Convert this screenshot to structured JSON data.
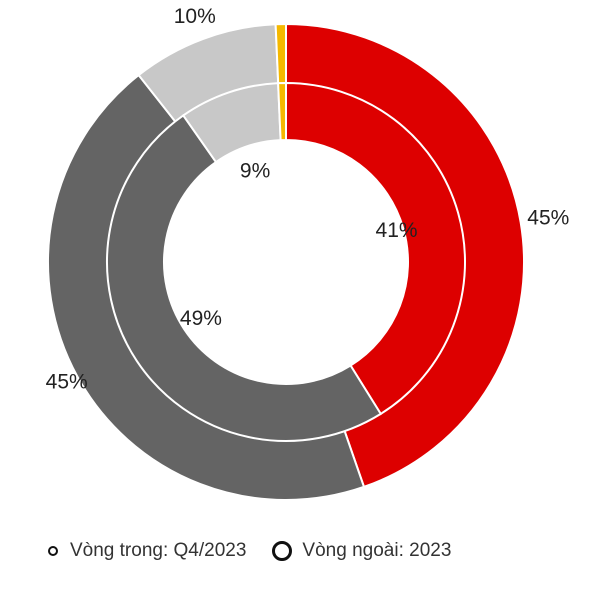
{
  "chart_data": {
    "type": "donut",
    "title": "",
    "series": [
      {
        "name": "Vòng ngoài: 2023",
        "ring": "outer",
        "values": [
          45,
          45,
          10,
          0.7
        ],
        "labels": [
          "45%",
          "45%",
          "10%",
          ""
        ]
      },
      {
        "name": "Vòng trong: Q4/2023",
        "ring": "inner",
        "values": [
          41,
          49,
          9,
          0.7
        ],
        "labels": [
          "41%",
          "49%",
          "9%",
          ""
        ]
      }
    ],
    "colors": [
      "#dd0000",
      "#646464",
      "#c8c8c8",
      "#f5b800"
    ],
    "legend_position": "bottom-left"
  },
  "legend": {
    "inner_label": "Vòng trong: Q4/2023",
    "outer_label": "Vòng ngoài: 2023"
  }
}
